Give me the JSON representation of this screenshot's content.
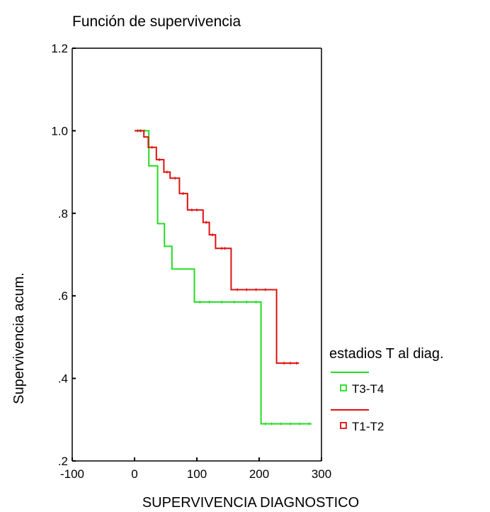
{
  "chart_data": {
    "type": "line",
    "title": "Función de supervivencia",
    "xlabel": "SUPERVIVENCIA DIAGNOSTICO",
    "ylabel": "Supervivencia acum.",
    "xlim": [
      -100,
      300
    ],
    "ylim": [
      0.2,
      1.2
    ],
    "x_ticks": [
      -100,
      0,
      100,
      200,
      300
    ],
    "x_tick_labels": [
      "-100",
      "0",
      "100",
      "200",
      "300"
    ],
    "y_ticks": [
      0.2,
      0.4,
      0.6,
      0.8,
      1.0,
      1.2
    ],
    "y_tick_labels": [
      ".2",
      ".4",
      ".6",
      ".8",
      "1.0",
      "1.2"
    ],
    "grid": false,
    "step": true,
    "legend": {
      "title": "estadios T al diag.",
      "position": "right"
    },
    "series": [
      {
        "name": "T3-T4",
        "color": "#22dd22",
        "points": [
          [
            0,
            1.0
          ],
          [
            23,
            1.0
          ],
          [
            23,
            0.915
          ],
          [
            37,
            0.915
          ],
          [
            37,
            0.775
          ],
          [
            48,
            0.775
          ],
          [
            48,
            0.72
          ],
          [
            60,
            0.72
          ],
          [
            60,
            0.665
          ],
          [
            96,
            0.665
          ],
          [
            96,
            0.585
          ],
          [
            203,
            0.585
          ],
          [
            203,
            0.29
          ],
          [
            284,
            0.29
          ]
        ],
        "censored_x": [
          8,
          16,
          105,
          120,
          140,
          160,
          180,
          195,
          210,
          220,
          235,
          250,
          265,
          280
        ]
      },
      {
        "name": "T1-T2",
        "color": "#dd1111",
        "points": [
          [
            0,
            1.0
          ],
          [
            15,
            1.0
          ],
          [
            15,
            0.985
          ],
          [
            22,
            0.985
          ],
          [
            22,
            0.96
          ],
          [
            35,
            0.96
          ],
          [
            35,
            0.93
          ],
          [
            47,
            0.93
          ],
          [
            47,
            0.9
          ],
          [
            57,
            0.9
          ],
          [
            57,
            0.885
          ],
          [
            72,
            0.885
          ],
          [
            72,
            0.848
          ],
          [
            85,
            0.848
          ],
          [
            85,
            0.808
          ],
          [
            110,
            0.808
          ],
          [
            110,
            0.778
          ],
          [
            120,
            0.778
          ],
          [
            120,
            0.748
          ],
          [
            130,
            0.748
          ],
          [
            130,
            0.715
          ],
          [
            155,
            0.715
          ],
          [
            155,
            0.615
          ],
          [
            228,
            0.615
          ],
          [
            228,
            0.437
          ],
          [
            264,
            0.437
          ]
        ],
        "censored_x": [
          5,
          10,
          28,
          40,
          52,
          65,
          78,
          92,
          100,
          115,
          125,
          140,
          145,
          165,
          180,
          195,
          210,
          240,
          250,
          260
        ]
      }
    ]
  }
}
